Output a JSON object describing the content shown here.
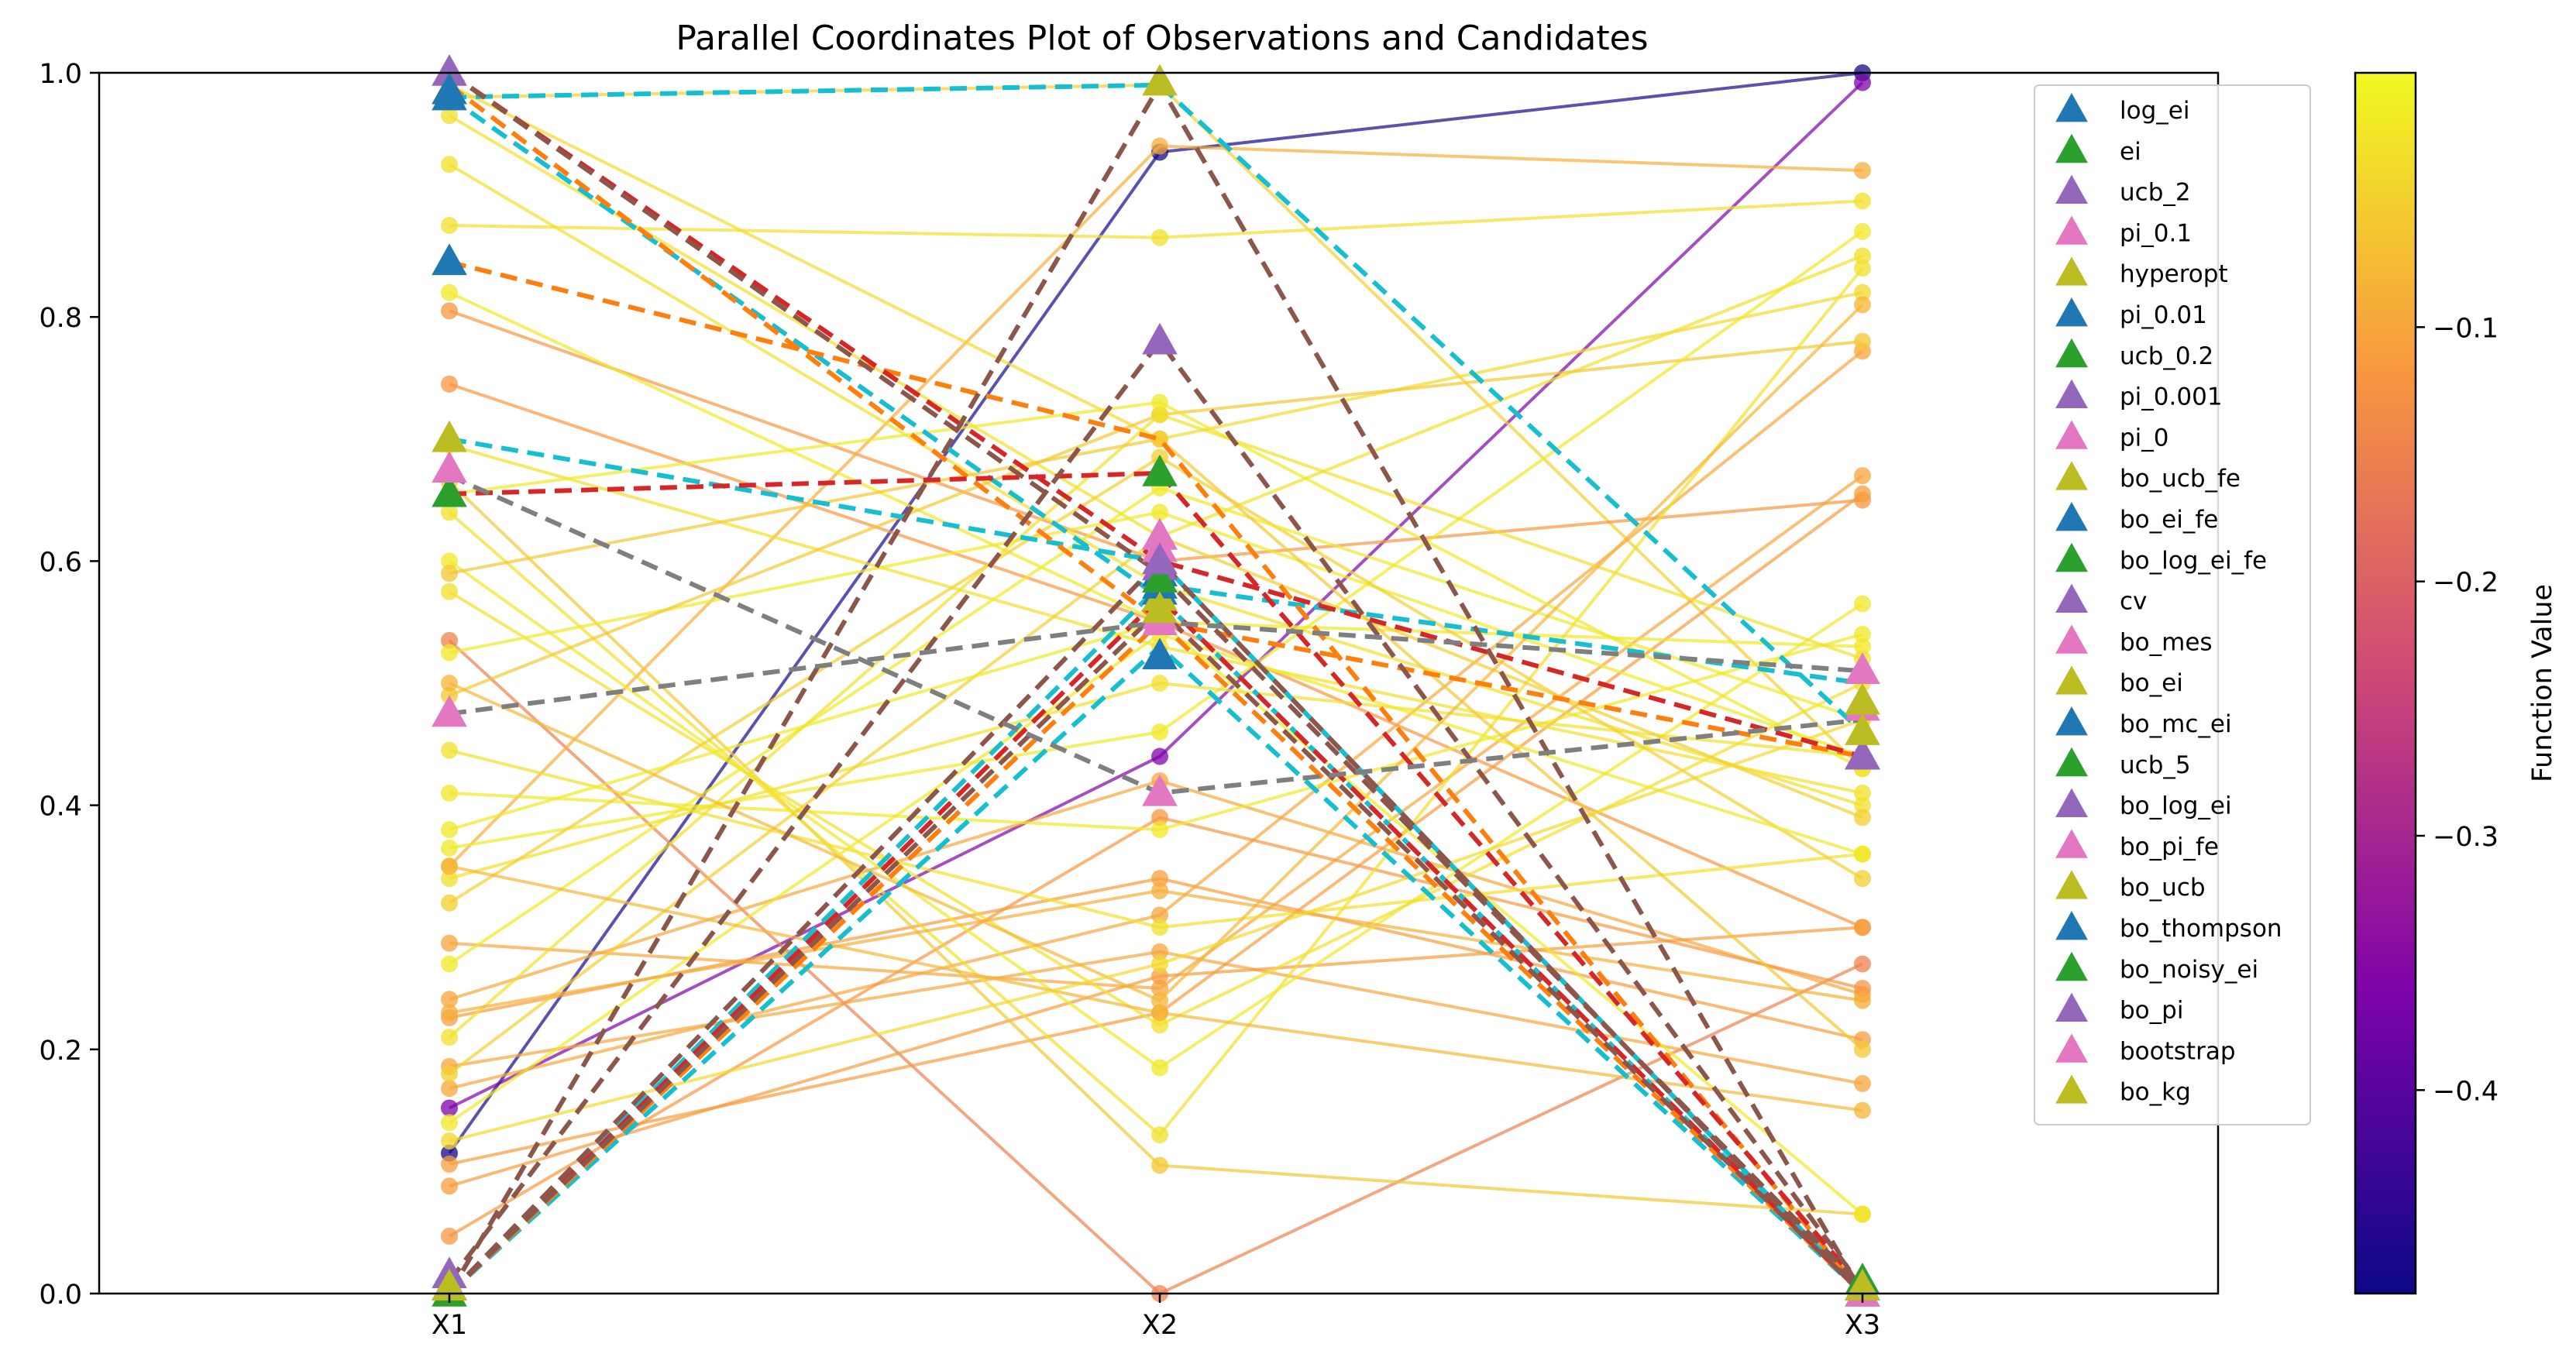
{
  "chart_data": {
    "type": "parallel_coordinates",
    "title": "Parallel Coordinates Plot of Observations and Candidates",
    "axes": [
      "X1",
      "X2",
      "X3"
    ],
    "ylim": [
      0.0,
      1.0
    ],
    "yticks": [
      "0.0",
      "0.2",
      "0.4",
      "0.6",
      "0.8",
      "1.0"
    ],
    "grid": false,
    "colorbar": {
      "label": "Function Value",
      "colormap": "plasma",
      "range": [
        -0.48,
        0.0
      ],
      "ticks": [
        -0.4,
        -0.3,
        -0.2,
        -0.1
      ],
      "tick_labels": [
        "−0.4",
        "−0.3",
        "−0.2",
        "−0.1"
      ]
    },
    "observations": [
      {
        "values": [
          0.115,
          0.935,
          1.0
        ],
        "f": -0.47
      },
      {
        "values": [
          0.152,
          0.44,
          0.992
        ],
        "f": -0.36
      },
      {
        "values": [
          0.98,
          0.99,
          0.43
        ],
        "f": -0.05
      },
      {
        "values": [
          0.875,
          0.865,
          0.895
        ],
        "f": -0.03
      },
      {
        "values": [
          0.805,
          0.6,
          0.65
        ],
        "f": -0.12
      },
      {
        "values": [
          0.745,
          0.55,
          0.3
        ],
        "f": -0.12
      },
      {
        "values": [
          0.535,
          0.0,
          0.27
        ],
        "f": -0.15
      },
      {
        "values": [
          0.35,
          0.94,
          0.92
        ],
        "f": -0.09
      },
      {
        "values": [
          0.287,
          0.25,
          0.67
        ],
        "f": -0.1
      },
      {
        "values": [
          0.241,
          0.42,
          0.245
        ],
        "f": -0.1
      },
      {
        "values": [
          0.226,
          0.34,
          0.208
        ],
        "f": -0.11
      },
      {
        "values": [
          0.186,
          0.28,
          0.172
        ],
        "f": -0.1
      },
      {
        "values": [
          0.168,
          0.31,
          0.772
        ],
        "f": -0.1
      },
      {
        "values": [
          0.106,
          0.23,
          0.655
        ],
        "f": -0.11
      },
      {
        "values": [
          0.088,
          0.26,
          0.3
        ],
        "f": -0.11
      },
      {
        "values": [
          0.047,
          0.39,
          0.25
        ],
        "f": -0.12
      },
      {
        "values": [
          0.99,
          0.7,
          0.82
        ],
        "f": -0.04
      },
      {
        "values": [
          0.965,
          0.62,
          0.85
        ],
        "f": -0.03
      },
      {
        "values": [
          0.925,
          0.58,
          0.4
        ],
        "f": -0.03
      },
      {
        "values": [
          0.82,
          0.55,
          0.53
        ],
        "f": -0.02
      },
      {
        "values": [
          0.695,
          0.53,
          0.41
        ],
        "f": -0.03
      },
      {
        "values": [
          0.665,
          0.105,
          0.065
        ],
        "f": -0.06
      },
      {
        "values": [
          0.64,
          0.13,
          0.84
        ],
        "f": -0.03
      },
      {
        "values": [
          0.6,
          0.185,
          0.565
        ],
        "f": -0.02
      },
      {
        "values": [
          0.575,
          0.22,
          0.5
        ],
        "f": -0.03
      },
      {
        "values": [
          0.525,
          0.64,
          0.44
        ],
        "f": -0.02
      },
      {
        "values": [
          0.49,
          0.72,
          0.78
        ],
        "f": -0.06
      },
      {
        "values": [
          0.445,
          0.3,
          0.36
        ],
        "f": -0.03
      },
      {
        "values": [
          0.41,
          0.38,
          0.54
        ],
        "f": -0.02
      },
      {
        "values": [
          0.365,
          0.46,
          0.87
        ],
        "f": -0.02
      },
      {
        "values": [
          0.34,
          0.5,
          0.44
        ],
        "f": -0.03
      },
      {
        "values": [
          0.32,
          0.685,
          0.34
        ],
        "f": -0.05
      },
      {
        "values": [
          0.27,
          0.66,
          0.47
        ],
        "f": -0.02
      },
      {
        "values": [
          0.21,
          0.72,
          0.52
        ],
        "f": -0.03
      },
      {
        "values": [
          0.18,
          0.62,
          0.39
        ],
        "f": -0.05
      },
      {
        "values": [
          0.14,
          0.54,
          0.36
        ],
        "f": -0.02
      },
      {
        "values": [
          0.35,
          0.23,
          0.15
        ],
        "f": -0.08
      },
      {
        "values": [
          0.59,
          0.7,
          0.2
        ],
        "f": -0.06
      },
      {
        "values": [
          0.655,
          0.73,
          0.43
        ],
        "f": -0.02
      },
      {
        "values": [
          0.5,
          0.24,
          0.81
        ],
        "f": -0.08
      },
      {
        "values": [
          0.23,
          0.33,
          0.24
        ],
        "f": -0.09
      },
      {
        "values": [
          0.125,
          0.27,
          0.47
        ],
        "f": -0.04
      },
      {
        "values": [
          0.38,
          0.55,
          0.065
        ],
        "f": -0.02
      }
    ],
    "candidates": [
      {
        "name": "log_ei",
        "color": "#1f77b4",
        "values": [
          0.98,
          0.62,
          0.01
        ]
      },
      {
        "name": "ei",
        "color": "#2ca02c",
        "values": [
          0.655,
          0.672,
          0.01
        ]
      },
      {
        "name": "ucb_2",
        "color": "#9467bd",
        "values": [
          1.0,
          0.6,
          0.005
        ]
      },
      {
        "name": "pi_0.1",
        "color": "#e377c2",
        "values": [
          0.675,
          0.61,
          0.48
        ]
      },
      {
        "name": "hyperopt",
        "color": "#bcbd22",
        "values": [
          0.985,
          0.992,
          0.005
        ]
      },
      {
        "name": "pi_0.01",
        "color": "#1f77b4",
        "values": [
          0.845,
          0.522,
          0.44
        ]
      },
      {
        "name": "ucb_0.2",
        "color": "#2ca02c",
        "values": [
          0.005,
          0.585,
          0.005
        ]
      },
      {
        "name": "pi_0.001",
        "color": "#9467bd",
        "values": [
          0.015,
          0.78,
          0.005
        ]
      },
      {
        "name": "pi_0",
        "color": "#e377c2",
        "values": [
          0.475,
          0.41,
          0.51
        ]
      },
      {
        "name": "bo_ucb_fe",
        "color": "#bcbd22",
        "values": [
          0.7,
          0.555,
          0.485
        ]
      },
      {
        "name": "bo_ei_fe",
        "color": "#1f77b4",
        "values": [
          0.985,
          0.575,
          0.44
        ]
      },
      {
        "name": "bo_log_ei_fe",
        "color": "#2ca02c",
        "values": [
          0.0,
          0.59,
          0.0
        ]
      },
      {
        "name": "cv",
        "color": "#9467bd",
        "values": [
          0.005,
          0.59,
          0.44
        ]
      },
      {
        "name": "bo_mes",
        "color": "#e377c2",
        "values": [
          0.005,
          0.555,
          0.005
        ]
      },
      {
        "name": "bo_ei",
        "color": "#bcbd22",
        "values": [
          0.005,
          0.56,
          0.46
        ]
      },
      {
        "name": "bo_mc_ei",
        "color": "#1f77b4",
        "values": [
          0.005,
          0.59,
          0.005
        ]
      },
      {
        "name": "ucb_5",
        "color": "#2ca02c",
        "values": [
          0.005,
          0.58,
          0.005
        ]
      },
      {
        "name": "bo_log_ei",
        "color": "#9467bd",
        "values": [
          0.005,
          0.595,
          0.005
        ]
      },
      {
        "name": "bo_pi_fe",
        "color": "#e377c2",
        "values": [
          0.005,
          0.62,
          0.005
        ]
      },
      {
        "name": "bo_ucb",
        "color": "#bcbd22",
        "values": [
          0.005,
          0.57,
          0.005
        ]
      },
      {
        "name": "bo_thompson",
        "color": "#1f77b4",
        "values": [
          0.005,
          0.58,
          0.005
        ]
      },
      {
        "name": "bo_noisy_ei",
        "color": "#2ca02c",
        "values": [
          0.005,
          0.585,
          0.005
        ]
      },
      {
        "name": "bo_pi",
        "color": "#9467bd",
        "values": [
          0.005,
          0.6,
          0.005
        ]
      },
      {
        "name": "bootstrap",
        "color": "#e377c2",
        "values": [
          0.005,
          0.55,
          0.0
        ]
      },
      {
        "name": "bo_kg",
        "color": "#bcbd22",
        "values": [
          0.005,
          0.56,
          0.005
        ]
      }
    ],
    "candidate_paths": [
      {
        "color": "#17becf",
        "values": [
          0.98,
          0.99,
          0.46
        ]
      },
      {
        "color": "#17becf",
        "values": [
          0.7,
          0.6,
          0.0
        ]
      },
      {
        "color": "#17becf",
        "values": [
          0.98,
          0.57,
          0.0
        ]
      },
      {
        "color": "#17becf",
        "values": [
          0.0,
          0.53,
          0.0
        ]
      },
      {
        "color": "#17becf",
        "values": [
          0.0,
          0.58,
          0.5
        ]
      },
      {
        "color": "#ff7f0e",
        "values": [
          0.845,
          0.7,
          0.0
        ]
      },
      {
        "color": "#ff7f0e",
        "values": [
          0.99,
          0.55,
          0.44
        ]
      },
      {
        "color": "#ff7f0e",
        "values": [
          0.0,
          0.55,
          0.0
        ]
      },
      {
        "color": "#d62728",
        "values": [
          0.655,
          0.672,
          0.005
        ]
      },
      {
        "color": "#d62728",
        "values": [
          1.0,
          0.6,
          0.44
        ]
      },
      {
        "color": "#d62728",
        "values": [
          0.0,
          0.57,
          0.0
        ]
      },
      {
        "color": "#8c564b",
        "values": [
          1.0,
          0.59,
          0.005
        ]
      },
      {
        "color": "#8c564b",
        "values": [
          0.0,
          0.99,
          0.0
        ]
      },
      {
        "color": "#8c564b",
        "values": [
          0.01,
          0.78,
          0.005
        ]
      },
      {
        "color": "#8c564b",
        "values": [
          0.0,
          0.56,
          0.0
        ]
      },
      {
        "color": "#8c564b",
        "values": [
          0.0,
          0.6,
          0.0
        ]
      },
      {
        "color": "#7f7f7f",
        "values": [
          0.475,
          0.55,
          0.51
        ]
      },
      {
        "color": "#7f7f7f",
        "values": [
          0.67,
          0.41,
          0.47
        ]
      }
    ],
    "legend_placement": "upper-right inside plot"
  }
}
